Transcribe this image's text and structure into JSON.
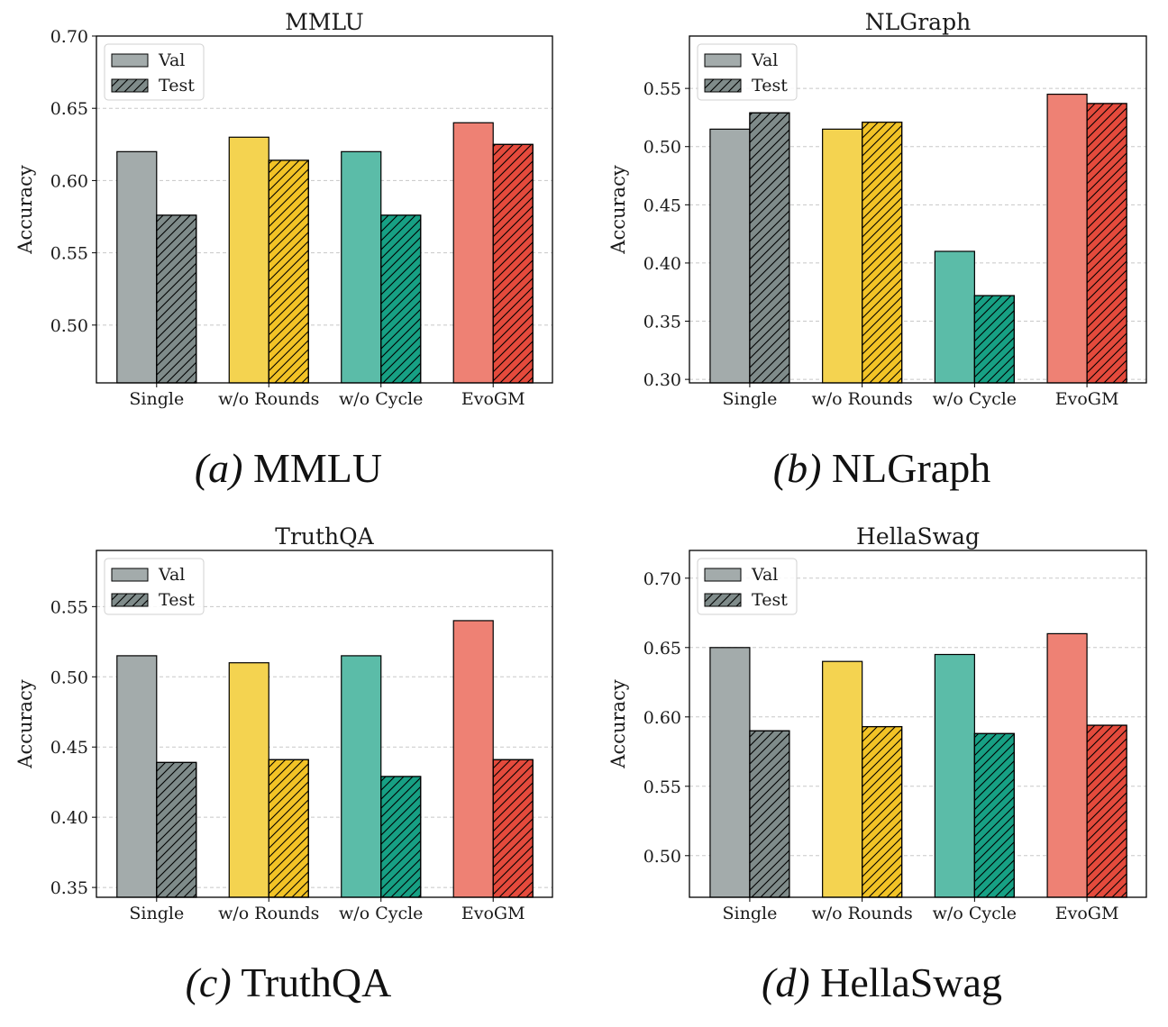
{
  "colors": {
    "Single": "#a3abab",
    "w/o Rounds": "#f4d350",
    "w/o Cycle": "#5bbca8",
    "EvoGM": "#ee8174",
    "Single_test": "#7f8b8a",
    "w/o Rounds_test": "#f2c326",
    "w/o Cycle_test": "#17a084",
    "EvoGM_test": "#e44a3c",
    "grid": "#c8c8c8",
    "axes": "#000000"
  },
  "chart_data": [
    {
      "type": "bar",
      "title": "MMLU",
      "caption_letter": "(a)",
      "caption_name": "MMLU",
      "xlabel": "",
      "ylabel": "Accuracy",
      "categories": [
        "Single",
        "w/o Rounds",
        "w/o Cycle",
        "EvoGM"
      ],
      "series": [
        {
          "name": "Val",
          "values": [
            0.62,
            0.63,
            0.62,
            0.64
          ]
        },
        {
          "name": "Test",
          "values": [
            0.576,
            0.614,
            0.576,
            0.625
          ]
        }
      ],
      "ylim": [
        0.46,
        0.7
      ],
      "yticks": [
        0.5,
        0.55,
        0.6,
        0.65,
        0.7
      ],
      "ytick_labels": [
        "0.50",
        "0.55",
        "0.60",
        "0.65",
        "0.70"
      ],
      "grid": true,
      "legend_position": "top-left"
    },
    {
      "type": "bar",
      "title": "NLGraph",
      "caption_letter": "(b)",
      "caption_name": "NLGraph",
      "xlabel": "",
      "ylabel": "Accuracy",
      "categories": [
        "Single",
        "w/o Rounds",
        "w/o Cycle",
        "EvoGM"
      ],
      "series": [
        {
          "name": "Val",
          "values": [
            0.515,
            0.515,
            0.41,
            0.545
          ]
        },
        {
          "name": "Test",
          "values": [
            0.529,
            0.521,
            0.372,
            0.537
          ]
        }
      ],
      "ylim": [
        0.297,
        0.595
      ],
      "yticks": [
        0.3,
        0.35,
        0.4,
        0.45,
        0.5,
        0.55
      ],
      "ytick_labels": [
        "0.30",
        "0.35",
        "0.40",
        "0.45",
        "0.50",
        "0.55"
      ],
      "grid": true,
      "legend_position": "top-left"
    },
    {
      "type": "bar",
      "title": "TruthQA",
      "caption_letter": "(c)",
      "caption_name": "TruthQA",
      "xlabel": "",
      "ylabel": "Accuracy",
      "categories": [
        "Single",
        "w/o Rounds",
        "w/o Cycle",
        "EvoGM"
      ],
      "series": [
        {
          "name": "Val",
          "values": [
            0.515,
            0.51,
            0.515,
            0.54
          ]
        },
        {
          "name": "Test",
          "values": [
            0.439,
            0.441,
            0.429,
            0.441
          ]
        }
      ],
      "ylim": [
        0.343,
        0.59
      ],
      "yticks": [
        0.35,
        0.4,
        0.45,
        0.5,
        0.55
      ],
      "ytick_labels": [
        "0.35",
        "0.40",
        "0.45",
        "0.50",
        "0.55"
      ],
      "grid": true,
      "legend_position": "top-left"
    },
    {
      "type": "bar",
      "title": "HellaSwag",
      "caption_letter": "(d)",
      "caption_name": "HellaSwag",
      "xlabel": "",
      "ylabel": "Accuracy",
      "categories": [
        "Single",
        "w/o Rounds",
        "w/o Cycle",
        "EvoGM"
      ],
      "series": [
        {
          "name": "Val",
          "values": [
            0.65,
            0.64,
            0.645,
            0.66
          ]
        },
        {
          "name": "Test",
          "values": [
            0.59,
            0.593,
            0.588,
            0.594
          ]
        }
      ],
      "ylim": [
        0.47,
        0.72
      ],
      "yticks": [
        0.5,
        0.55,
        0.6,
        0.65,
        0.7
      ],
      "ytick_labels": [
        "0.50",
        "0.55",
        "0.60",
        "0.65",
        "0.70"
      ],
      "grid": true,
      "legend_position": "top-left"
    }
  ]
}
